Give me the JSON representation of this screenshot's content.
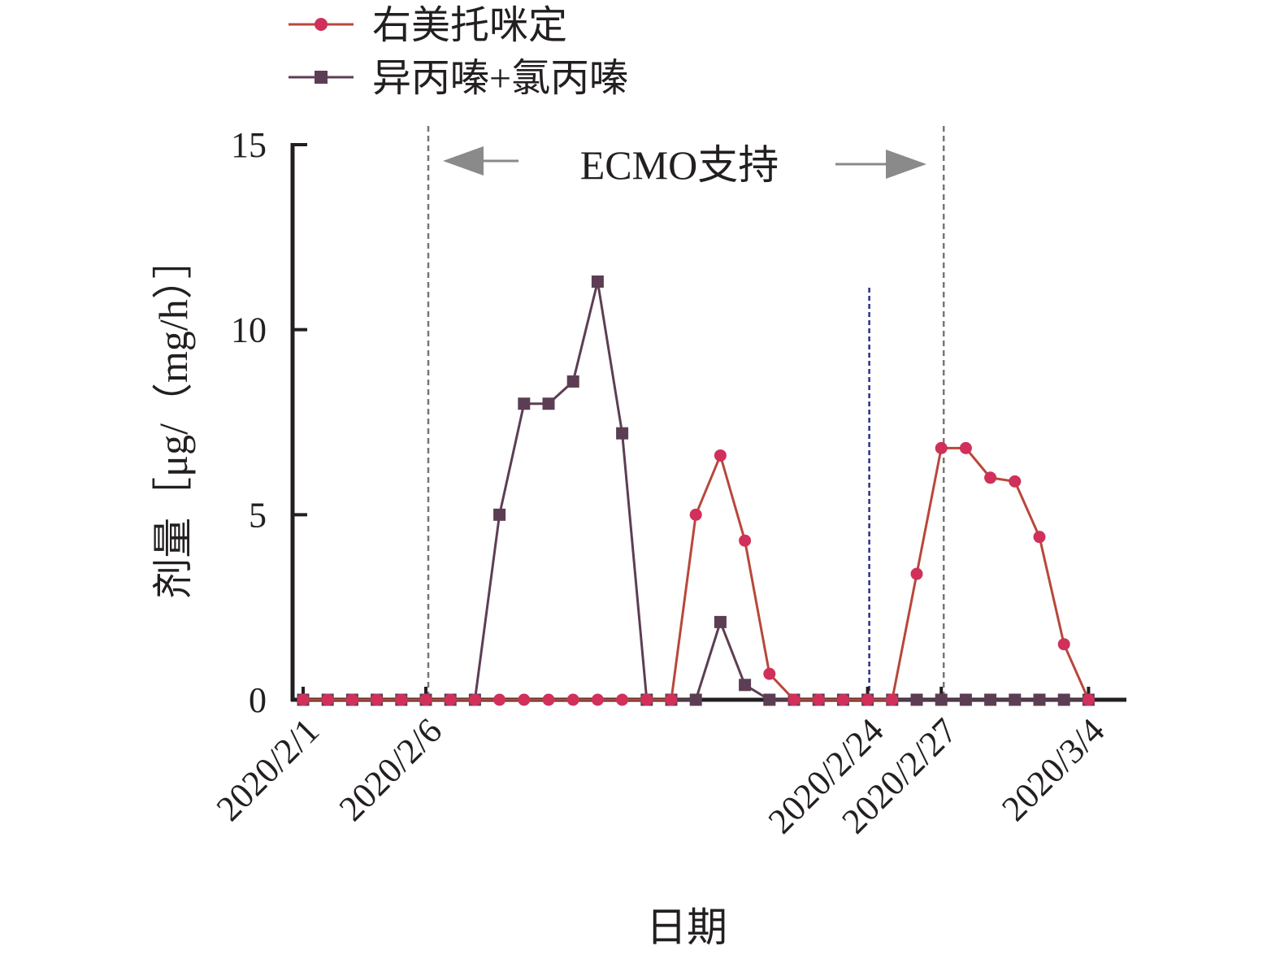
{
  "chart_data": {
    "type": "line",
    "title": "",
    "xlabel": "日期",
    "ylabel": "剂量［μg/（mg/h）］",
    "ylim": [
      0,
      15
    ],
    "yticks": [
      0,
      5,
      10,
      15
    ],
    "x_start": "2020/2/1",
    "x_end": "2020/3/4",
    "x_tick_labels": [
      "2020/2/1",
      "2020/2/6",
      "2020/2/24",
      "2020/2/27",
      "2020/3/4"
    ],
    "legend_position": "top-left",
    "grid": false,
    "dates": [
      "2020/2/1",
      "2020/2/2",
      "2020/2/3",
      "2020/2/4",
      "2020/2/5",
      "2020/2/6",
      "2020/2/7",
      "2020/2/8",
      "2020/2/9",
      "2020/2/10",
      "2020/2/11",
      "2020/2/12",
      "2020/2/13",
      "2020/2/14",
      "2020/2/15",
      "2020/2/16",
      "2020/2/17",
      "2020/2/18",
      "2020/2/19",
      "2020/2/20",
      "2020/2/21",
      "2020/2/22",
      "2020/2/23",
      "2020/2/24",
      "2020/2/25",
      "2020/2/26",
      "2020/2/27",
      "2020/2/28",
      "2020/2/29",
      "2020/3/1",
      "2020/3/2",
      "2020/3/3",
      "2020/3/4"
    ],
    "series": [
      {
        "name": "右美托咪定",
        "color": "#d0305a",
        "line_color": "#b8473a",
        "marker": "circle",
        "values": [
          0,
          0,
          0,
          0,
          0,
          0,
          0,
          0,
          0,
          0,
          0,
          0,
          0,
          0,
          0,
          0,
          5.0,
          6.6,
          4.3,
          0.7,
          0,
          0,
          0,
          0,
          0,
          3.4,
          6.8,
          6.8,
          6.0,
          5.9,
          4.4,
          1.5,
          0
        ]
      },
      {
        "name": "异丙嗪+氯丙嗪",
        "color": "#5c3e54",
        "line_color": "#5c3e54",
        "marker": "square",
        "values": [
          0,
          0,
          0,
          0,
          0,
          0,
          0,
          0,
          5.0,
          8.0,
          8.0,
          8.6,
          11.3,
          7.2,
          0,
          0,
          0,
          2.1,
          0.4,
          0,
          0,
          0,
          0,
          0,
          0,
          0,
          0,
          0,
          0,
          0,
          0,
          0,
          0
        ]
      }
    ],
    "annotations": {
      "ecmo_label": "ECMO支持",
      "ecmo_start": "2020/2/6",
      "ecmo_end": "2020/2/27",
      "marker_line_date": "2020/2/24",
      "marker_line_color": "#2b2f8c",
      "boundary_line_color": "#777777",
      "arrow_color": "#8a8a8a"
    },
    "axis_color": "#231f20"
  }
}
